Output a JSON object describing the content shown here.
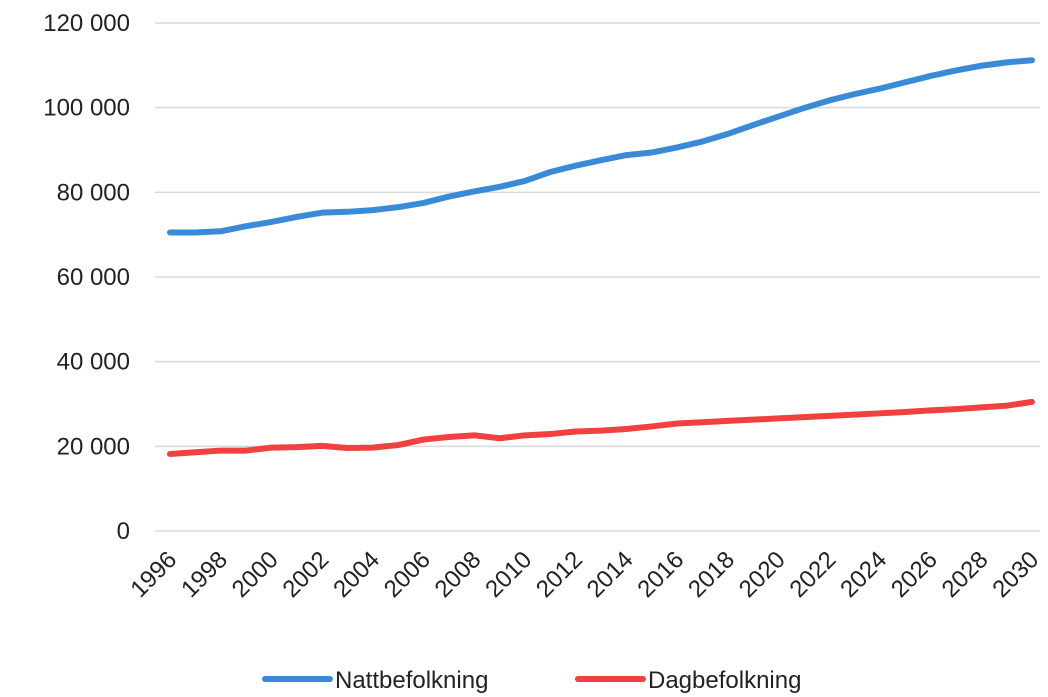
{
  "chart_data": {
    "type": "line",
    "x": [
      1996,
      1997,
      1998,
      1999,
      2000,
      2001,
      2002,
      2003,
      2004,
      2005,
      2006,
      2007,
      2008,
      2009,
      2010,
      2011,
      2012,
      2013,
      2014,
      2015,
      2016,
      2017,
      2018,
      2019,
      2020,
      2021,
      2022,
      2023,
      2024,
      2025,
      2026,
      2027,
      2028,
      2029,
      2030
    ],
    "xlim": [
      1996,
      2030
    ],
    "xticks": [
      1996,
      1998,
      2000,
      2002,
      2004,
      2006,
      2008,
      2010,
      2012,
      2014,
      2016,
      2018,
      2020,
      2022,
      2024,
      2026,
      2028,
      2030
    ],
    "ylim": [
      0,
      120000
    ],
    "yticks": [
      {
        "value": 0,
        "label": "0"
      },
      {
        "value": 20000,
        "label": "20 000"
      },
      {
        "value": 40000,
        "label": "40 000"
      },
      {
        "value": 60000,
        "label": "60 000"
      },
      {
        "value": 80000,
        "label": "80 000"
      },
      {
        "value": 100000,
        "label": "100 000"
      },
      {
        "value": 120000,
        "label": "120 000"
      }
    ],
    "grid": true,
    "legend": "bottom",
    "series": [
      {
        "name": "Nattbefolkning",
        "color": "#3a8ad8",
        "values": [
          70500,
          70500,
          70800,
          72000,
          73000,
          74200,
          75200,
          75400,
          75800,
          76500,
          77500,
          79000,
          80200,
          81300,
          82700,
          84800,
          86300,
          87600,
          88800,
          89400,
          90600,
          92000,
          93800,
          95900,
          97900,
          99900,
          101700,
          103200,
          104500,
          106000,
          107500,
          108800,
          109900,
          110700,
          111200
        ]
      },
      {
        "name": "Dagbefolkning",
        "color": "#f04040",
        "values": [
          18200,
          18600,
          19000,
          19000,
          19700,
          19800,
          20100,
          19600,
          19700,
          20300,
          21600,
          22200,
          22600,
          21900,
          22600,
          22900,
          23500,
          23700,
          24100,
          24700,
          25400,
          25700,
          26000,
          26300,
          26600,
          26900,
          27200,
          27500,
          27800,
          28100,
          28500,
          28800,
          29200,
          29600,
          30500
        ]
      }
    ]
  }
}
